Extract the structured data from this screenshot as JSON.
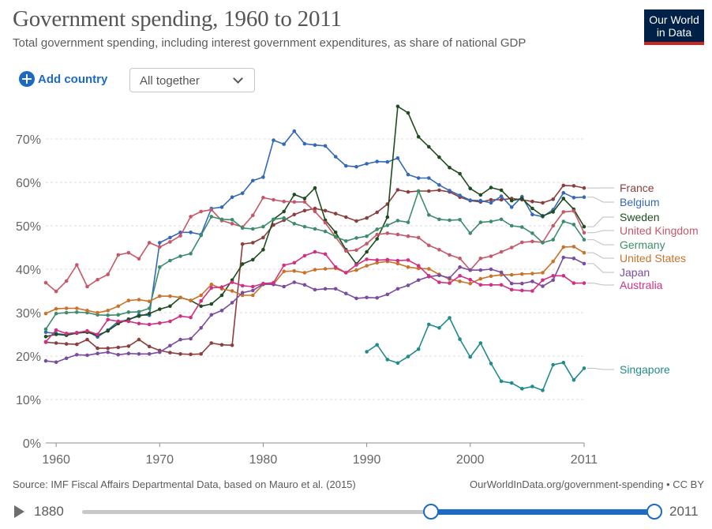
{
  "header": {
    "title": "Government spending, 1960 to 2011",
    "subtitle": "Total government spending, including interest government expenditures, as share of national GDP",
    "logo_line1": "Our World",
    "logo_line2": "in Data"
  },
  "controls": {
    "add_country_label": "Add country",
    "select_value": "All together"
  },
  "footer": {
    "source": "Source: IMF Fiscal Affairs Departmental Data, based on Mauro et al. (2015)",
    "credit": "OurWorldInData.org/government-spending • CC BY"
  },
  "timeline": {
    "start_label": "1880",
    "end_label": "2011"
  },
  "chart_data": {
    "type": "line",
    "title": "Government spending, 1960 to 2011",
    "xlabel": "",
    "ylabel": "",
    "xlim": [
      1959,
      2011
    ],
    "ylim": [
      0,
      75
    ],
    "x_ticks": [
      1960,
      1970,
      1980,
      1990,
      2000,
      2011
    ],
    "y_ticks": [
      0,
      10,
      20,
      30,
      40,
      50,
      60,
      70
    ],
    "y_tick_suffix": "%",
    "grid": "horizontal-dashed",
    "legend": "right-end-labels",
    "series": [
      {
        "name": "France",
        "color": "#8c3d3d",
        "start": 1959,
        "values": [
          23.2,
          23.0,
          22.8,
          22.7,
          23.8,
          21.8,
          21.8,
          22.0,
          22.3,
          23.8,
          22.2,
          21.3,
          20.8,
          20.5,
          20.4,
          20.5,
          23.0,
          22.6,
          22.5,
          45.8,
          46.1,
          47.3,
          50.2,
          51.3,
          52.6,
          53.5,
          54.0,
          53.5,
          52.8,
          52.0,
          51.1,
          51.8,
          53.1,
          55.0,
          58.3,
          57.8,
          58.0,
          58.0,
          58.2,
          57.8,
          56.6,
          55.8,
          55.5,
          56.0,
          56.0,
          56.3,
          56.0,
          55.6,
          55.3,
          56.1,
          59.3,
          59.2,
          58.7
        ]
      },
      {
        "name": "Belgium",
        "color": "#3569b8",
        "start": 1959,
        "values": [
          25.5,
          25.2,
          24.9,
          25.3,
          25.7,
          24.4,
          26.0,
          28.0,
          28.3,
          29.5,
          29.4,
          46.1,
          47.3,
          48.5,
          48.5,
          48.0,
          54.0,
          54.3,
          56.6,
          57.5,
          60.4,
          61.2,
          69.7,
          68.8,
          71.8,
          68.9,
          68.6,
          68.4,
          65.9,
          63.8,
          63.6,
          64.3,
          64.8,
          64.7,
          65.6,
          61.8,
          61.0,
          61.0,
          59.4,
          58.1,
          57.0,
          55.9,
          55.8,
          55.3,
          56.8,
          54.3,
          56.7,
          52.6,
          52.1,
          53.7,
          57.6,
          56.5,
          56.6
        ]
      },
      {
        "name": "Sweden",
        "color": "#1f4d1f",
        "start": 1959,
        "values": [
          24.5,
          25.0,
          24.8,
          25.3,
          25.5,
          24.8,
          25.8,
          27.5,
          28.5,
          29.2,
          29.8,
          30.8,
          31.5,
          33.5,
          32.8,
          31.5,
          32.0,
          34.0,
          37.5,
          41.2,
          42.2,
          44.5,
          51.5,
          53.3,
          57.2,
          56.3,
          58.7,
          51.3,
          48.5,
          44.5,
          41.2,
          44.0,
          47.0,
          52.0,
          77.5,
          76.0,
          70.5,
          68.2,
          65.8,
          63.4,
          62.0,
          58.6,
          57.1,
          58.8,
          58.2,
          55.8,
          56.3,
          54.0,
          52.3,
          53.2,
          56.3,
          53.8,
          49.8
        ]
      },
      {
        "name": "United Kingdom",
        "color": "#c55868",
        "start": 1959,
        "values": [
          36.9,
          34.9,
          37.3,
          41.0,
          36.0,
          37.6,
          38.8,
          43.3,
          43.8,
          42.4,
          46.1,
          45.1,
          46.3,
          47.7,
          52.1,
          53.3,
          53.7,
          51.2,
          50.5,
          49.7,
          52.4,
          56.5,
          56.0,
          55.6,
          55.5,
          55.5,
          53.3,
          50.7,
          47.4,
          44.2,
          44.4,
          45.9,
          48.0,
          48.3,
          48.0,
          47.6,
          47.3,
          45.5,
          44.5,
          43.3,
          42.5,
          39.8,
          42.5,
          43.0,
          44.0,
          45.0,
          46.2,
          46.4,
          46.2,
          50.0,
          53.2,
          53.4,
          48.4
        ]
      },
      {
        "name": "Germany",
        "color": "#3d8c6b",
        "start": 1959,
        "values": [
          26.2,
          29.8,
          30.0,
          30.1,
          30.0,
          29.5,
          29.4,
          29.5,
          30.1,
          30.2,
          31.0,
          40.5,
          42.0,
          43.0,
          43.6,
          47.8,
          52.1,
          51.5,
          51.4,
          49.5,
          49.3,
          49.8,
          51.5,
          51.8,
          50.5,
          49.8,
          49.3,
          48.7,
          47.5,
          46.5,
          47.2,
          47.6,
          49.2,
          50.1,
          51.2,
          50.8,
          58.0,
          52.5,
          51.5,
          51.3,
          51.4,
          48.3,
          50.8,
          51.0,
          51.5,
          50.0,
          49.7,
          48.3,
          46.1,
          46.8,
          51.0,
          50.3,
          46.8
        ]
      },
      {
        "name": "United States",
        "color": "#c8722a",
        "start": 1959,
        "values": [
          29.8,
          30.9,
          31.0,
          31.0,
          30.5,
          30.0,
          30.5,
          31.5,
          32.8,
          33.0,
          32.6,
          33.8,
          33.8,
          33.5,
          32.8,
          34.0,
          36.5,
          35.5,
          35.0,
          34.0,
          34.0,
          36.5,
          36.6,
          39.5,
          39.6,
          39.2,
          39.9,
          40.1,
          40.2,
          39.2,
          39.8,
          40.8,
          41.5,
          41.8,
          41.3,
          40.5,
          40.2,
          40.1,
          38.8,
          37.7,
          37.2,
          36.7,
          37.8,
          38.4,
          38.7,
          38.7,
          38.9,
          39.0,
          39.2,
          41.8,
          45.1,
          45.2,
          43.8
        ]
      },
      {
        "name": "Japan",
        "color": "#7a4c9f",
        "start": 1959,
        "values": [
          18.9,
          18.6,
          19.5,
          20.3,
          20.2,
          20.6,
          20.9,
          20.3,
          20.6,
          20.5,
          20.5,
          20.9,
          22.4,
          23.8,
          24.0,
          26.5,
          29.5,
          30.5,
          32.3,
          34.6,
          35.1,
          36.6,
          36.5,
          36.0,
          37.0,
          36.4,
          35.3,
          35.5,
          35.5,
          34.4,
          33.3,
          33.5,
          33.4,
          34.2,
          35.5,
          36.3,
          37.5,
          38.3,
          38.6,
          38.0,
          40.5,
          39.8,
          39.8,
          40.0,
          39.3,
          36.7,
          36.7,
          37.2,
          36.1,
          37.5,
          42.7,
          42.5,
          41.3
        ]
      },
      {
        "name": "Australia",
        "color": "#d12f82",
        "start": 1959,
        "values": [
          23.3,
          26.0,
          25.2,
          25.4,
          25.8,
          25.0,
          28.4,
          28.0,
          28.0,
          27.5,
          27.3,
          27.6,
          28.0,
          29.2,
          28.9,
          32.7,
          35.7,
          35.9,
          37.0,
          36.2,
          36.0,
          36.7,
          36.9,
          40.9,
          41.5,
          43.1,
          44.0,
          43.5,
          40.5,
          39.2,
          41.0,
          42.3,
          42.1,
          42.2,
          42.0,
          42.1,
          40.8,
          38.5,
          37.0,
          36.8,
          38.5,
          37.6,
          36.4,
          36.4,
          36.4,
          35.3,
          35.1,
          35.0,
          37.5,
          38.5,
          38.5,
          36.8,
          36.8
        ]
      },
      {
        "name": "Singapore",
        "color": "#208b8b",
        "start": 1990,
        "values": [
          21.0,
          22.6,
          19.2,
          18.4,
          19.9,
          21.6,
          27.3,
          26.5,
          28.8,
          23.9,
          19.8,
          23.0,
          18.3,
          14.2,
          13.8,
          12.5,
          13.0,
          12.1,
          18.0,
          18.5,
          14.5,
          17.2
        ]
      }
    ]
  }
}
